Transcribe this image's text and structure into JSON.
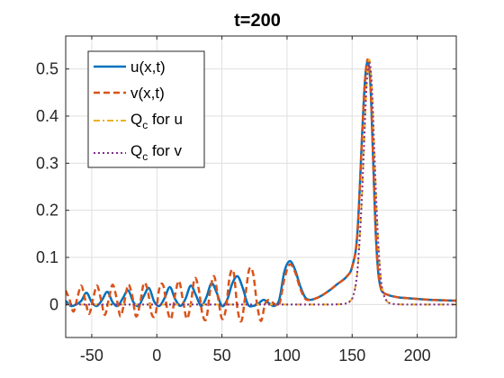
{
  "chart_data": {
    "type": "line",
    "title": "t=200",
    "xlabel": "",
    "ylabel": "",
    "xlim": [
      -70,
      230
    ],
    "ylim": [
      -0.07,
      0.57
    ],
    "xticks": [
      -50,
      0,
      50,
      100,
      150,
      200
    ],
    "yticks": [
      0,
      0.1,
      0.2,
      0.3,
      0.4,
      0.5
    ],
    "xtick_labels": [
      "-50",
      "0",
      "50",
      "100",
      "150",
      "200"
    ],
    "ytick_labels": [
      "0",
      "0.1",
      "0.2",
      "0.3",
      "0.4",
      "0.5"
    ],
    "grid": true,
    "legend_position": "top-left",
    "series": [
      {
        "name": "u(x,t)",
        "color": "#0072BD",
        "style": "solid",
        "x": [
          -70,
          -66,
          -62,
          -58,
          -54,
          -50,
          -46,
          -42,
          -38,
          -34,
          -30,
          -26,
          -22,
          -18,
          -14,
          -10,
          -6,
          -2,
          2,
          6,
          10,
          14,
          18,
          22,
          26,
          30,
          34,
          38,
          42,
          46,
          50,
          54,
          58,
          62,
          66,
          70,
          74,
          78,
          82,
          86,
          90,
          94,
          98,
          102,
          106,
          110,
          114,
          118,
          122,
          126,
          130,
          134,
          138,
          142,
          146,
          150,
          154,
          158,
          160,
          162,
          164,
          166,
          168,
          170,
          172,
          174,
          178,
          182,
          186,
          190,
          200,
          210,
          220,
          230
        ],
        "y": [
          0.008,
          -0.003,
          0.0,
          0.008,
          0.025,
          0.005,
          -0.003,
          0.01,
          0.027,
          0.005,
          -0.003,
          0.014,
          0.03,
          0.005,
          -0.003,
          0.018,
          0.035,
          0.006,
          -0.003,
          0.014,
          0.037,
          0.012,
          -0.003,
          0.012,
          0.04,
          0.02,
          -0.003,
          0.015,
          0.045,
          0.025,
          -0.003,
          0.01,
          0.045,
          0.06,
          0.035,
          0.0,
          -0.003,
          0.002,
          0.01,
          0.003,
          -0.003,
          0.01,
          0.07,
          0.092,
          0.075,
          0.04,
          0.015,
          0.01,
          0.013,
          0.018,
          0.025,
          0.033,
          0.042,
          0.05,
          0.06,
          0.08,
          0.15,
          0.38,
          0.48,
          0.515,
          0.47,
          0.32,
          0.16,
          0.07,
          0.035,
          0.025,
          0.02,
          0.017,
          0.015,
          0.014,
          0.012,
          0.01,
          0.009,
          0.008
        ]
      },
      {
        "name": "v(x,t)",
        "color": "#D95319",
        "style": "dashed",
        "x": [
          -70,
          -67,
          -64,
          -61,
          -58,
          -55,
          -52,
          -49,
          -46,
          -43,
          -40,
          -37,
          -34,
          -31,
          -28,
          -25,
          -22,
          -19,
          -16,
          -13,
          -10,
          -7,
          -4,
          -1,
          2,
          5,
          8,
          11,
          14,
          17,
          20,
          23,
          26,
          29,
          32,
          35,
          38,
          41,
          44,
          47,
          50,
          53,
          56,
          59,
          62,
          65,
          68,
          71,
          74,
          77,
          80,
          83,
          86,
          90,
          94,
          98,
          102,
          106,
          110,
          114,
          118,
          122,
          126,
          130,
          134,
          138,
          142,
          146,
          150,
          154,
          158,
          160,
          162,
          164,
          166,
          168,
          170,
          172,
          174,
          178,
          182,
          186,
          190,
          200,
          210,
          220,
          230
        ],
        "y": [
          0.03,
          0.01,
          -0.015,
          0.015,
          0.04,
          0.01,
          -0.02,
          0.012,
          0.04,
          0.012,
          -0.022,
          0.01,
          0.042,
          0.015,
          -0.025,
          0.005,
          0.042,
          0.02,
          -0.025,
          0.0,
          0.045,
          0.03,
          -0.02,
          -0.02,
          0.035,
          0.04,
          -0.01,
          -0.03,
          0.02,
          0.05,
          0.01,
          -0.03,
          0.0,
          0.055,
          0.035,
          -0.02,
          -0.03,
          0.03,
          0.06,
          0.015,
          -0.03,
          -0.01,
          0.06,
          0.068,
          -0.01,
          -0.035,
          0.02,
          0.075,
          0.065,
          0.0,
          -0.035,
          0.0,
          0.01,
          0.002,
          0.0,
          0.055,
          0.085,
          0.07,
          0.035,
          0.012,
          0.01,
          0.013,
          0.018,
          0.025,
          0.033,
          0.042,
          0.05,
          0.06,
          0.08,
          0.15,
          0.38,
          0.48,
          0.52,
          0.47,
          0.32,
          0.16,
          0.07,
          0.035,
          0.025,
          0.02,
          0.017,
          0.015,
          0.014,
          0.012,
          0.01,
          0.009,
          0.008
        ]
      },
      {
        "name": "Q_c for u",
        "color": "#EDB120",
        "style": "dashdot",
        "x": [
          -70,
          -40,
          -10,
          20,
          50,
          80,
          110,
          130,
          140,
          145,
          148,
          151,
          154,
          157,
          159,
          161,
          163,
          165,
          167,
          169,
          171,
          173,
          176,
          180,
          190,
          200,
          230
        ],
        "y": [
          0.0,
          0.0,
          0.0,
          0.0,
          0.0,
          0.0,
          0.0,
          0.0,
          0.0005,
          0.002,
          0.006,
          0.02,
          0.07,
          0.2,
          0.33,
          0.46,
          0.52,
          0.47,
          0.33,
          0.19,
          0.09,
          0.035,
          0.01,
          0.002,
          0.0,
          0.0,
          0.0
        ]
      },
      {
        "name": "Q_c for v",
        "color": "#7E2F8E",
        "style": "dotted",
        "x": [
          -70,
          -40,
          -10,
          20,
          50,
          80,
          110,
          130,
          140,
          145,
          148,
          151,
          154,
          157,
          159,
          161,
          163,
          165,
          167,
          169,
          171,
          173,
          176,
          180,
          190,
          200,
          230
        ],
        "y": [
          0.0,
          0.0,
          0.0,
          0.0,
          0.0,
          0.0,
          0.0,
          0.0,
          0.0005,
          0.002,
          0.006,
          0.02,
          0.07,
          0.2,
          0.33,
          0.46,
          0.515,
          0.47,
          0.33,
          0.19,
          0.09,
          0.035,
          0.01,
          0.002,
          0.0,
          0.0,
          0.0
        ]
      }
    ]
  },
  "legend": {
    "entries": [
      {
        "label": "u(x,t)",
        "base": "",
        "sub": "",
        "tail": ""
      },
      {
        "label": "v(x,t)",
        "base": "",
        "sub": "",
        "tail": ""
      },
      {
        "label": "Q_c for u",
        "base": "Q",
        "sub": "c",
        "tail": " for u"
      },
      {
        "label": "Q_c for v",
        "base": "Q",
        "sub": "c",
        "tail": " for v"
      }
    ]
  }
}
